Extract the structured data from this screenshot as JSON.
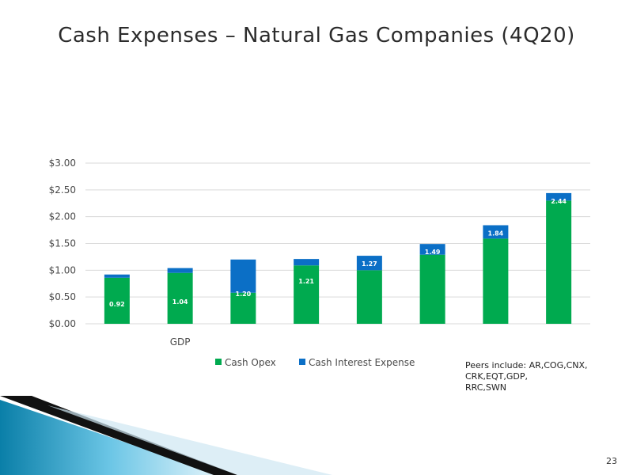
{
  "slide": {
    "title": "Cash Expenses – Natural Gas Companies (4Q20)",
    "note_lines": [
      "Peers include: AR,COG,CNX,",
      "CRK,EQT,GDP,",
      "RRC,SWN"
    ],
    "page_number": "23"
  },
  "colors": {
    "cash_opex": "#00aa4f",
    "cash_interest": "#0b6fc6",
    "gridline": "#d9d9d9",
    "label_text": "#ffffff"
  },
  "chart_data": {
    "type": "bar",
    "stacked": true,
    "title": "",
    "xlabel": "",
    "ylabel": "",
    "ylim": [
      0,
      3.0
    ],
    "yticks": [
      "$0.00",
      "$0.50",
      "$1.00",
      "$1.50",
      "$2.00",
      "$2.50",
      "$3.00"
    ],
    "ytick_values": [
      0,
      0.5,
      1.0,
      1.5,
      2.0,
      2.5,
      3.0
    ],
    "grid": true,
    "legend_position": "bottom",
    "categories": [
      "",
      "GDP",
      "",
      "",
      "",
      "",
      "",
      ""
    ],
    "series": [
      {
        "name": "Cash Opex",
        "values": [
          0.86,
          0.95,
          0.58,
          1.09,
          1.0,
          1.29,
          1.59,
          2.3
        ]
      },
      {
        "name": "Cash Interest Expense",
        "values": [
          0.06,
          0.09,
          0.62,
          0.12,
          0.27,
          0.2,
          0.25,
          0.14
        ]
      }
    ],
    "data_labels": [
      "0.92",
      "1.04",
      "1.20",
      "1.21",
      "1.27",
      "1.49",
      "1.84",
      "2.44"
    ]
  }
}
